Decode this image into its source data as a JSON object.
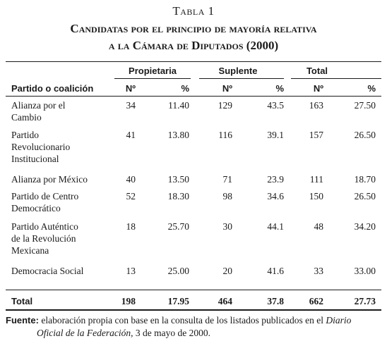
{
  "caption": {
    "label": "Tabla 1",
    "title_line1": "Candidatas por el principio de mayoría relativa",
    "title_line2": "a la Cámara de Diputados (2000)"
  },
  "header": {
    "groups": [
      "Propietaria",
      "Suplente",
      "Total"
    ],
    "row_label": "Partido o coalición",
    "num_label": "Nº",
    "pct_label": "%"
  },
  "rows": [
    {
      "party_lines": [
        "Alianza por el",
        "Cambio"
      ],
      "p_num": "34",
      "p_pct": "11.40",
      "s_num": "129",
      "s_pct": "43.5",
      "t_num": "163",
      "t_pct": "27.50"
    },
    {
      "party_lines": [
        "Partido",
        "Revolucionario",
        "Institucional"
      ],
      "p_num": "41",
      "p_pct": "13.80",
      "s_num": "116",
      "s_pct": "39.1",
      "t_num": "157",
      "t_pct": "26.50"
    },
    {
      "party_lines": [
        "Alianza por México"
      ],
      "p_num": "40",
      "p_pct": "13.50",
      "s_num": "71",
      "s_pct": "23.9",
      "t_num": "111",
      "t_pct": "18.70"
    },
    {
      "party_lines": [
        "Partido de Centro",
        "Democrático"
      ],
      "p_num": "52",
      "p_pct": "18.30",
      "s_num": "98",
      "s_pct": "34.6",
      "t_num": "150",
      "t_pct": "26.50"
    },
    {
      "party_lines": [
        "Partido Auténtico",
        "de la Revolución",
        "Mexicana"
      ],
      "p_num": "18",
      "p_pct": "25.70",
      "s_num": "30",
      "s_pct": "44.1",
      "t_num": "48",
      "t_pct": "34.20"
    },
    {
      "party_lines": [
        "Democracia Social"
      ],
      "p_num": "13",
      "p_pct": "25.00",
      "s_num": "20",
      "s_pct": "41.6",
      "t_num": "33",
      "t_pct": "33.00"
    }
  ],
  "total": {
    "label": "Total",
    "p_num": "198",
    "p_pct": "17.95",
    "s_num": "464",
    "s_pct": "37.8",
    "t_num": "662",
    "t_pct": "27.73"
  },
  "footnote": {
    "label": "Fuente:",
    "text1": " elaboración propia con base en la consulta de los listados publicados en el ",
    "source_italic1": "Diario",
    "source_italic2": "Oficial de la Federación",
    "text2": ", 3 de mayo de 2000."
  }
}
